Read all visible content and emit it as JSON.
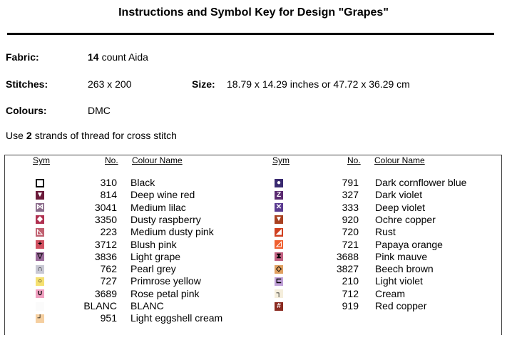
{
  "title": "Instructions and Symbol Key for Design \"Grapes\"",
  "fabric": {
    "label": "Fabric:",
    "count": "14",
    "rest": "count Aida"
  },
  "stitches": {
    "label": "Stitches:",
    "value": "263 x 200"
  },
  "size": {
    "label": "Size:",
    "value": "18.79 x 14.29 inches or 47.72 x 36.29 cm"
  },
  "colours": {
    "label": "Colours:",
    "value": "DMC"
  },
  "strands": {
    "pre": "Use",
    "num": "2",
    "post": "strands of thread for cross stitch"
  },
  "headers": {
    "sym": "Sym",
    "no": "No.",
    "name": "Colour Name"
  },
  "left": [
    {
      "no": "310",
      "name": "Black",
      "color": "#ffffff",
      "glyph": "",
      "fg": "#000",
      "border": "#000"
    },
    {
      "no": "814",
      "name": "Deep wine red",
      "color": "#6b1a3a",
      "glyph": "▼",
      "fg": "#fff"
    },
    {
      "no": "3041",
      "name": "Medium lilac",
      "color": "#8a6a8a",
      "glyph": "⋈",
      "fg": "#fff"
    },
    {
      "no": "3350",
      "name": "Dusty raspberry",
      "color": "#b03050",
      "glyph": "◆",
      "fg": "#fff"
    },
    {
      "no": "223",
      "name": "Medium dusty pink",
      "color": "#c06070",
      "glyph": "◺",
      "fg": "#fff"
    },
    {
      "no": "3712",
      "name": "Blush pink",
      "color": "#d05060",
      "glyph": "+",
      "fg": "#000"
    },
    {
      "no": "3836",
      "name": "Light grape",
      "color": "#9a6a9a",
      "glyph": "▽",
      "fg": "#000"
    },
    {
      "no": "762",
      "name": "Pearl grey",
      "color": "#c8c8d4",
      "glyph": "∩",
      "fg": "#000"
    },
    {
      "no": "727",
      "name": "Primrose yellow",
      "color": "#f5e070",
      "glyph": "○",
      "fg": "#000"
    },
    {
      "no": "3689",
      "name": "Rose petal pink",
      "color": "#f0a0c0",
      "glyph": "∪",
      "fg": "#000"
    },
    {
      "no": "BLANC",
      "name": "BLANC",
      "color": "#fbfbfb",
      "glyph": "",
      "fg": "#000"
    },
    {
      "no": "951",
      "name": "Light eggshell cream",
      "color": "#f5cfa0",
      "glyph": "┘",
      "fg": "#000"
    }
  ],
  "right": [
    {
      "no": "791",
      "name": "Dark cornflower blue",
      "color": "#3a2a70",
      "glyph": "●",
      "fg": "#fff"
    },
    {
      "no": "327",
      "name": "Dark violet",
      "color": "#5a2a70",
      "glyph": "Z",
      "fg": "#fff"
    },
    {
      "no": "333",
      "name": "Deep violet",
      "color": "#5a3a90",
      "glyph": "✕",
      "fg": "#fff"
    },
    {
      "no": "920",
      "name": "Ochre copper",
      "color": "#a84020",
      "glyph": "▼",
      "fg": "#fff"
    },
    {
      "no": "720",
      "name": "Rust",
      "color": "#d04020",
      "glyph": "◢",
      "fg": "#fff"
    },
    {
      "no": "721",
      "name": "Papaya orange",
      "color": "#f06030",
      "glyph": "◿",
      "fg": "#fff"
    },
    {
      "no": "3688",
      "name": "Pink mauve",
      "color": "#c06080",
      "glyph": "⧗",
      "fg": "#000"
    },
    {
      "no": "3827",
      "name": "Beech brown",
      "color": "#e0a060",
      "glyph": "◇",
      "fg": "#000"
    },
    {
      "no": "210",
      "name": "Light violet",
      "color": "#c0a0d8",
      "glyph": "⊏",
      "fg": "#000"
    },
    {
      "no": "712",
      "name": "Cream",
      "color": "#f5eedc",
      "glyph": "┐",
      "fg": "#000"
    },
    {
      "no": "919",
      "name": "Red copper",
      "color": "#8a2a20",
      "glyph": "#",
      "fg": "#fff"
    }
  ]
}
